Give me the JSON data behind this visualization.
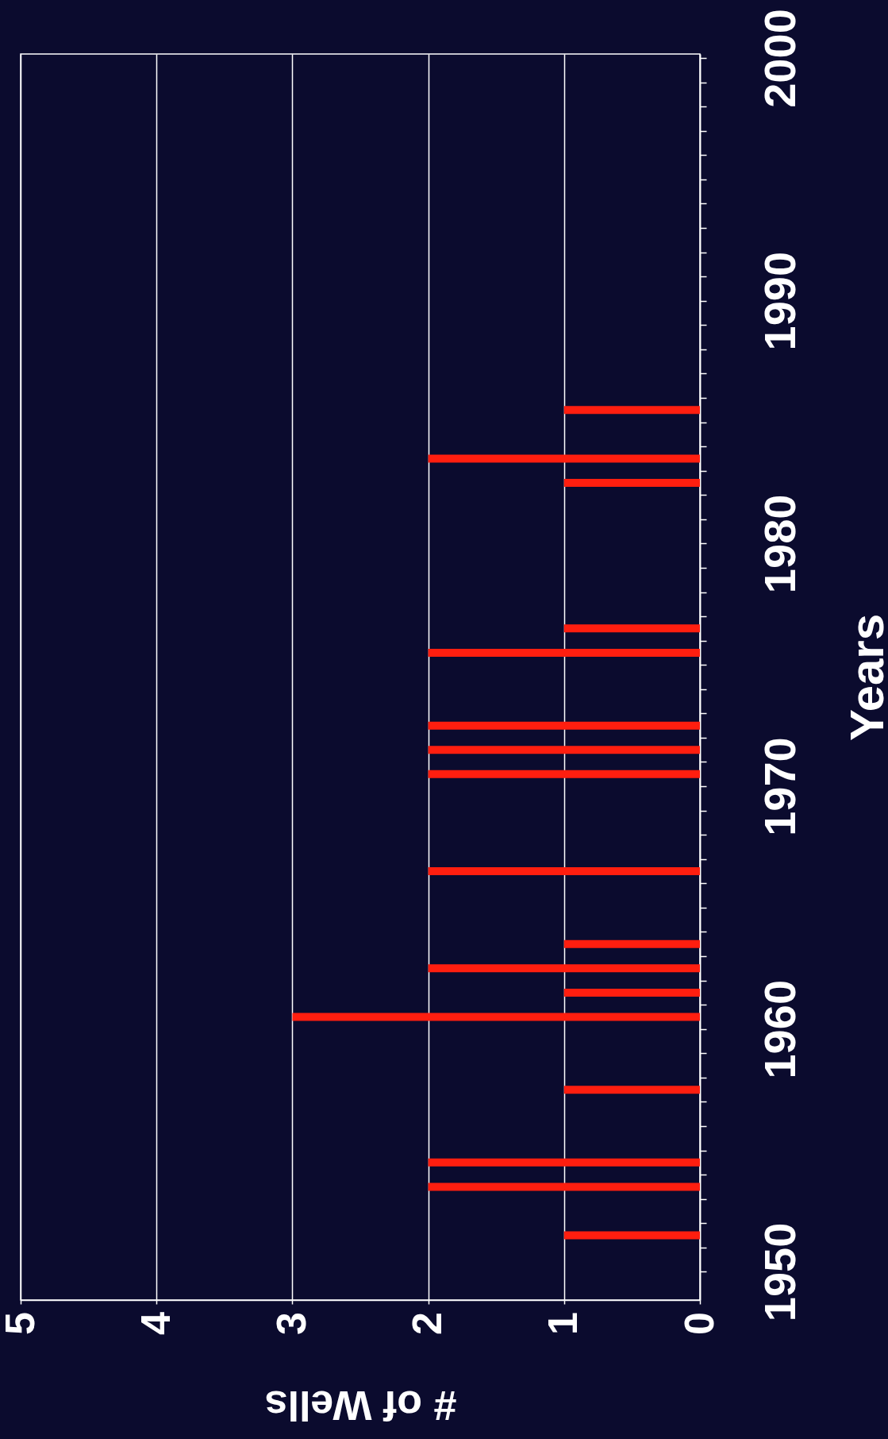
{
  "chart_data": {
    "type": "bar",
    "orientation": "horizontal",
    "xlabel": "# of Wells",
    "ylabel": "Years",
    "x": [
      1951.5,
      1953.5,
      1954.5,
      1957.5,
      1960.5,
      1961.5,
      1962.5,
      1963.5,
      1966.5,
      1970.5,
      1971.5,
      1972.5,
      1975.5,
      1976.5,
      1982.5,
      1983.5,
      1985.5
    ],
    "values": [
      1,
      2,
      2,
      1,
      3,
      1,
      2,
      1,
      2,
      2,
      2,
      2,
      2,
      1,
      1,
      2,
      1
    ],
    "color": "#ff1e0f",
    "xlim": [
      5,
      0
    ],
    "xticks": [
      0,
      1,
      2,
      3,
      4,
      5
    ],
    "ylim": [
      1949,
      2000
    ],
    "yticks": [
      1950,
      {
        "value": 1951,
        "label": null
      },
      {
        "value": 1952,
        "label": null
      },
      {
        "value": 1953,
        "label": null
      },
      {
        "value": 1954,
        "label": null
      },
      {
        "value": 1955,
        "label": null
      },
      {
        "value": 1956,
        "label": null
      },
      {
        "value": 1957,
        "label": null
      },
      {
        "value": 1958,
        "label": null
      },
      {
        "value": 1959,
        "label": null
      },
      1960,
      {
        "value": 1961,
        "label": null
      },
      {
        "value": 1962,
        "label": null
      },
      {
        "value": 1963,
        "label": null
      },
      {
        "value": 1964,
        "label": null
      },
      {
        "value": 1965,
        "label": null
      },
      {
        "value": 1966,
        "label": null
      },
      {
        "value": 1967,
        "label": null
      },
      {
        "value": 1968,
        "label": null
      },
      {
        "value": 1969,
        "label": null
      },
      1970,
      {
        "value": 1971,
        "label": null
      },
      {
        "value": 1972,
        "label": null
      },
      {
        "value": 1973,
        "label": null
      },
      {
        "value": 1974,
        "label": null
      },
      {
        "value": 1975,
        "label": null
      },
      {
        "value": 1976,
        "label": null
      },
      {
        "value": 1977,
        "label": null
      },
      {
        "value": 1978,
        "label": null
      },
      {
        "value": 1979,
        "label": null
      },
      1980,
      {
        "value": 1981,
        "label": null
      },
      {
        "value": 1982,
        "label": null
      },
      {
        "value": 1983,
        "label": null
      },
      {
        "value": 1984,
        "label": null
      },
      {
        "value": 1985,
        "label": null
      },
      {
        "value": 1986,
        "label": null
      },
      {
        "value": 1987,
        "label": null
      },
      {
        "value": 1988,
        "label": null
      },
      {
        "value": 1989,
        "label": null
      },
      1990,
      {
        "value": 1991,
        "label": null
      },
      {
        "value": 1992,
        "label": null
      },
      {
        "value": 1993,
        "label": null
      },
      {
        "value": 1994,
        "label": null
      },
      {
        "value": 1995,
        "label": null
      },
      {
        "value": 1996,
        "label": null
      },
      {
        "value": 1997,
        "label": null
      },
      {
        "value": 1998,
        "label": null
      },
      {
        "value": 1999,
        "label": null
      },
      2000
    ],
    "grid": "x"
  }
}
